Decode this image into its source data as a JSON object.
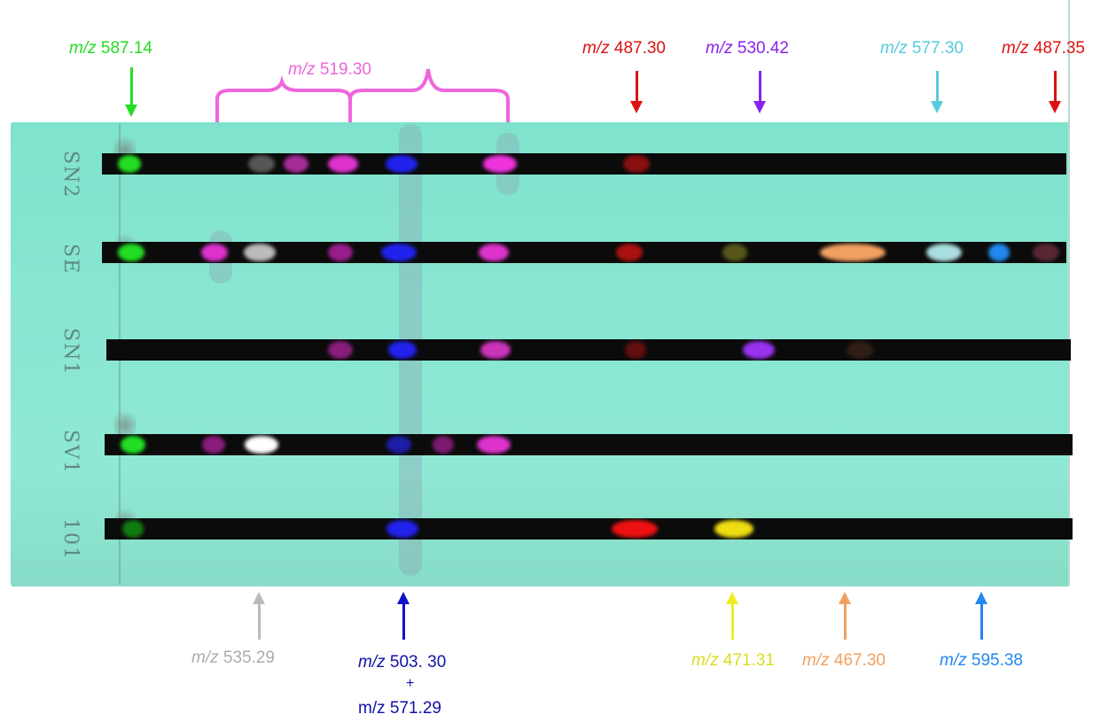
{
  "colors": {
    "green": "#22dd22",
    "pink": "#ee44cc",
    "red": "#dd1111",
    "purple": "#8822ee",
    "cyan": "#55ccdd",
    "gray": "#aaaaaa",
    "blue": "#1111cc",
    "yellow": "#eeee22",
    "orange": "#f0a060",
    "lightblue": "#2288ee",
    "plate": "#86e4cf",
    "strip": "#0b0b0b"
  },
  "top_labels": {
    "mz587_prefix": "m/z",
    "mz587_value": "587.14",
    "mz519_prefix": "m/z",
    "mz519_value": "519.30",
    "mz487a_prefix": "m/z",
    "mz487a_value": "487.30",
    "mz530_prefix": "m/z",
    "mz530_value": "530.42",
    "mz577_prefix": "m/z",
    "mz577_value": "577.30",
    "mz487b_prefix": "m/z",
    "mz487b_value": "487.35"
  },
  "bottom_labels": {
    "mz535_prefix": "m/z",
    "mz535_value": "535.29",
    "mz503_prefix": "m/z",
    "mz503_value": "503. 30",
    "plus": "+",
    "mz571": "m/z 571.29",
    "mz471_prefix": "m/z",
    "mz471_value": "471.31",
    "mz467_prefix": "m/z",
    "mz467_value": "467.30",
    "mz595_prefix": "m/z",
    "mz595_value": "595.38"
  },
  "lanes": [
    {
      "label": "SN2"
    },
    {
      "label": "SE"
    },
    {
      "label": "SN1"
    },
    {
      "label": "SV1"
    },
    {
      "label": "101"
    }
  ]
}
